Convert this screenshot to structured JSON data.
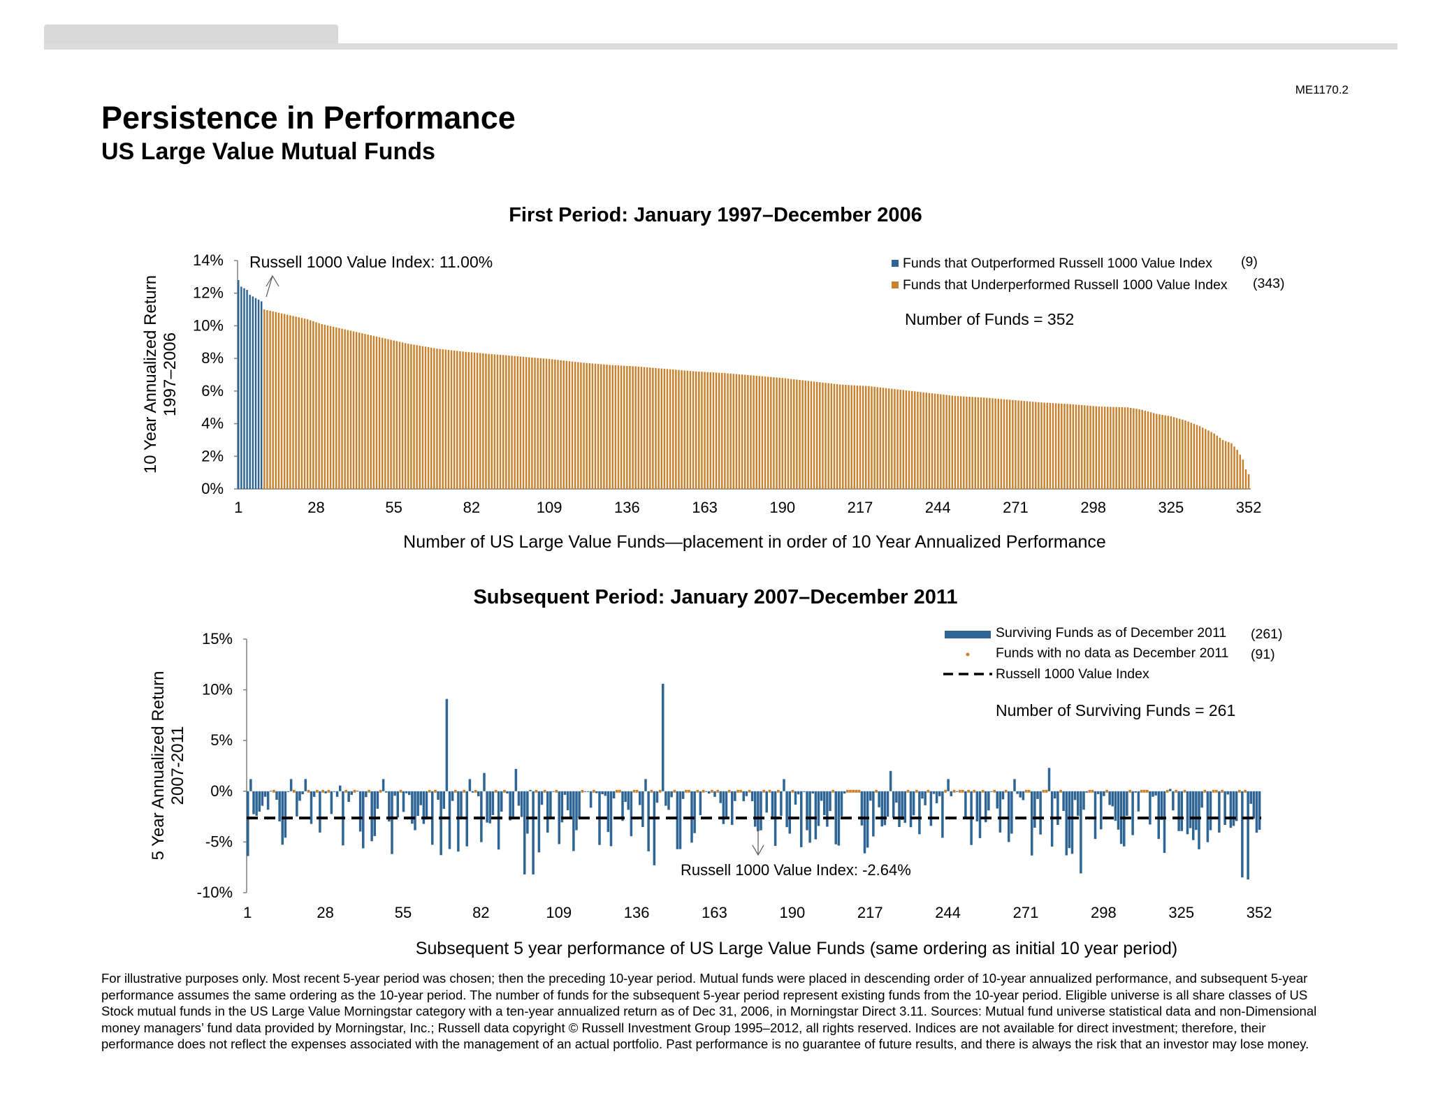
{
  "doc_code": "ME1170.2",
  "title": "Persistence in Performance",
  "subtitle": "US Large Value Mutual Funds",
  "colors": {
    "blue": "#2e6594",
    "orange": "#c8812d",
    "axis": "#808080"
  },
  "footnote": "For illustrative purposes only. Most recent 5-year period was chosen; then the preceding 10-year period. Mutual funds were placed in descending order of 10-year annualized performance, and subsequent 5-year performance assumes the same ordering as the 10-year period. The number of funds for the subsequent 5-year period represent existing funds from the 10-year period. Eligible universe is all share classes of US Stock mutual funds in the US Large Value Morningstar category with a ten-year annualized return as of Dec 31, 2006, in Morningstar Direct 3.11. Sources: Mutual fund universe statistical data and non-Dimensional money managers’ fund data provided by Morningstar, Inc.; Russell data copyright © Russell Investment Group 1995–2012, all rights reserved. Indices are not available for direct investment; therefore, their performance does not reflect the expenses associated with the management of an actual portfolio. Past performance is no guarantee of future results, and there is always the risk that an investor may lose money.",
  "chart_data": [
    {
      "type": "bar",
      "title": "First Period: January 1997–December 2006",
      "ylabel": [
        "10 Year Annualized Return",
        "1997–2006"
      ],
      "xlabel": "Number of US Large Value Funds—placement in order of 10 Year Annualized Performance",
      "yticks": [
        "0%",
        "2%",
        "4%",
        "6%",
        "8%",
        "10%",
        "12%",
        "14%"
      ],
      "xticks": [
        "1",
        "28",
        "55",
        "82",
        "109",
        "136",
        "163",
        "190",
        "217",
        "244",
        "271",
        "298",
        "325",
        "352"
      ],
      "ylim": [
        0,
        14
      ],
      "n_funds": 352,
      "annotation": "Russell 1000 Value Index: 11.00%",
      "index_value": 11.0,
      "legend": [
        {
          "label": "Funds that Outperformed Russell 1000 Value Index",
          "count": "(9)",
          "color": "#2e6594"
        },
        {
          "label": "Funds that Underperformed Russell 1000 Value Index",
          "count": "(343)",
          "color": "#c8812d"
        }
      ],
      "count_text": "Number of Funds = 352",
      "outperformed": [
        12.8,
        12.4,
        12.3,
        12.2,
        11.9,
        11.8,
        11.7,
        11.6,
        11.5
      ],
      "underperformed_profile": {
        "ranks": [
          10,
          15,
          20,
          25,
          30,
          40,
          50,
          60,
          70,
          80,
          90,
          100,
          110,
          120,
          130,
          140,
          150,
          160,
          170,
          180,
          190,
          200,
          210,
          220,
          230,
          240,
          250,
          260,
          270,
          280,
          290,
          300,
          310,
          315,
          320,
          325,
          330,
          335,
          340,
          343,
          346,
          348,
          350,
          351,
          352
        ],
        "values": [
          11.0,
          10.8,
          10.6,
          10.4,
          10.1,
          9.7,
          9.3,
          8.9,
          8.6,
          8.4,
          8.25,
          8.1,
          7.95,
          7.75,
          7.6,
          7.5,
          7.35,
          7.2,
          7.1,
          6.95,
          6.8,
          6.6,
          6.4,
          6.3,
          6.1,
          5.9,
          5.7,
          5.6,
          5.45,
          5.3,
          5.2,
          5.05,
          5.0,
          4.85,
          4.6,
          4.45,
          4.2,
          3.85,
          3.4,
          3.0,
          2.8,
          2.4,
          1.8,
          1.2,
          0.9
        ]
      }
    },
    {
      "type": "bar",
      "title": "Subsequent Period: January 2007–December 2011",
      "ylabel": [
        "5 Year Annualized Return",
        "2007-2011"
      ],
      "xlabel": "Subsequent 5 year performance of US Large Value Funds (same ordering as initial 10 year period)",
      "yticks": [
        "-10%",
        "-5%",
        "0%",
        "5%",
        "10%",
        "15%"
      ],
      "xticks": [
        "1",
        "28",
        "55",
        "82",
        "109",
        "136",
        "163",
        "190",
        "217",
        "244",
        "271",
        "298",
        "325",
        "352"
      ],
      "ylim": [
        -10,
        15
      ],
      "n_funds": 352,
      "annotation": "Russell 1000 Value Index: -2.64%",
      "index_value": -2.64,
      "legend": [
        {
          "label": "Surviving Funds as of December 2011",
          "count": "(261)",
          "color": "#2e6594"
        },
        {
          "label": "Funds with no data as December 2011",
          "count": "(91)",
          "color": "#c8812d"
        },
        {
          "label": "Russell 1000 Value Index",
          "count": "",
          "color": "#000000"
        }
      ],
      "count_text": "Number of Surviving Funds = 261",
      "highlighted_values": [
        {
          "rank": 70,
          "value": 9.1
        },
        {
          "rank": 145,
          "value": 10.6
        },
        {
          "rank": 2,
          "value": 1.2
        },
        {
          "rank": 83,
          "value": 1.8
        },
        {
          "rank": 94,
          "value": 2.2
        },
        {
          "rank": 224,
          "value": 2.0
        },
        {
          "rank": 279,
          "value": 2.3
        },
        {
          "rank": 97,
          "value": -8.2
        },
        {
          "rank": 100,
          "value": -8.2
        },
        {
          "rank": 142,
          "value": -7.3
        },
        {
          "rank": 290,
          "value": -8.1
        },
        {
          "rank": 346,
          "value": -8.5
        },
        {
          "rank": 348,
          "value": -8.7
        }
      ]
    }
  ]
}
